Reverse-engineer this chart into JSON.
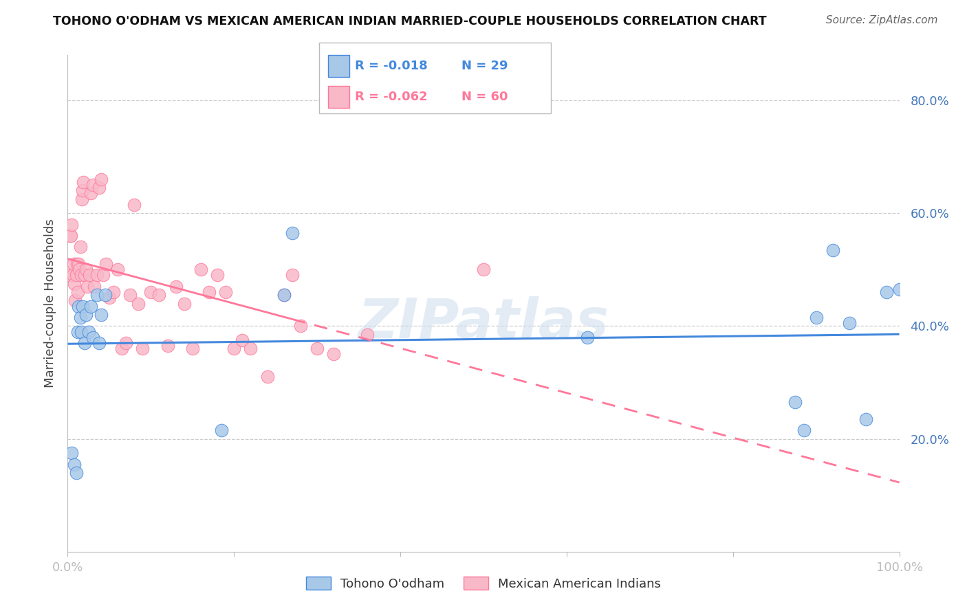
{
  "title": "TOHONO O'ODHAM VS MEXICAN AMERICAN INDIAN MARRIED-COUPLE HOUSEHOLDS CORRELATION CHART",
  "source": "Source: ZipAtlas.com",
  "ylabel": "Married-couple Households",
  "legend_label1": "Tohono O'odham",
  "legend_label2": "Mexican American Indians",
  "legend_r1": "R = -0.018",
  "legend_n1": "N = 29",
  "legend_r2": "R = -0.062",
  "legend_n2": "N = 60",
  "color_blue": "#A8C8E8",
  "color_pink": "#F8B8C8",
  "line_blue": "#4488DD",
  "line_pink": "#FF7799",
  "blue_x": [
    0.005,
    0.008,
    0.01,
    0.012,
    0.013,
    0.015,
    0.016,
    0.018,
    0.02,
    0.022,
    0.025,
    0.028,
    0.03,
    0.035,
    0.038,
    0.04,
    0.045,
    0.185,
    0.26,
    0.27,
    0.625,
    0.875,
    0.885,
    0.9,
    0.92,
    0.94,
    0.96,
    0.985,
    1.0
  ],
  "blue_y": [
    0.175,
    0.155,
    0.14,
    0.39,
    0.435,
    0.415,
    0.39,
    0.435,
    0.37,
    0.42,
    0.39,
    0.435,
    0.38,
    0.455,
    0.37,
    0.42,
    0.455,
    0.215,
    0.455,
    0.565,
    0.38,
    0.265,
    0.215,
    0.415,
    0.535,
    0.405,
    0.235,
    0.46,
    0.465
  ],
  "pink_x": [
    0.002,
    0.003,
    0.004,
    0.005,
    0.006,
    0.007,
    0.008,
    0.009,
    0.01,
    0.011,
    0.012,
    0.013,
    0.014,
    0.015,
    0.016,
    0.017,
    0.018,
    0.019,
    0.02,
    0.022,
    0.024,
    0.026,
    0.028,
    0.03,
    0.032,
    0.035,
    0.038,
    0.04,
    0.043,
    0.046,
    0.05,
    0.055,
    0.06,
    0.065,
    0.07,
    0.075,
    0.08,
    0.085,
    0.09,
    0.1,
    0.11,
    0.12,
    0.13,
    0.14,
    0.15,
    0.16,
    0.17,
    0.18,
    0.19,
    0.2,
    0.21,
    0.22,
    0.24,
    0.26,
    0.27,
    0.28,
    0.3,
    0.32,
    0.36,
    0.5
  ],
  "pink_y": [
    0.49,
    0.56,
    0.56,
    0.58,
    0.49,
    0.51,
    0.475,
    0.445,
    0.49,
    0.51,
    0.46,
    0.51,
    0.5,
    0.54,
    0.49,
    0.625,
    0.64,
    0.655,
    0.49,
    0.5,
    0.47,
    0.49,
    0.635,
    0.65,
    0.47,
    0.49,
    0.645,
    0.66,
    0.49,
    0.51,
    0.45,
    0.46,
    0.5,
    0.36,
    0.37,
    0.455,
    0.615,
    0.44,
    0.36,
    0.46,
    0.455,
    0.365,
    0.47,
    0.44,
    0.36,
    0.5,
    0.46,
    0.49,
    0.46,
    0.36,
    0.375,
    0.36,
    0.31,
    0.455,
    0.49,
    0.4,
    0.36,
    0.35,
    0.385,
    0.5
  ],
  "watermark": "ZIPatlas",
  "xlim": [
    0.0,
    1.0
  ],
  "ylim": [
    0.0,
    0.88
  ],
  "ytick_values": [
    0.2,
    0.4,
    0.6,
    0.8
  ],
  "xtick_values": [
    0.0,
    0.2,
    0.4,
    0.6,
    0.8,
    1.0
  ],
  "xtick_labels_show": [
    "0.0%",
    "",
    "",
    "",
    "",
    "100.0%"
  ]
}
